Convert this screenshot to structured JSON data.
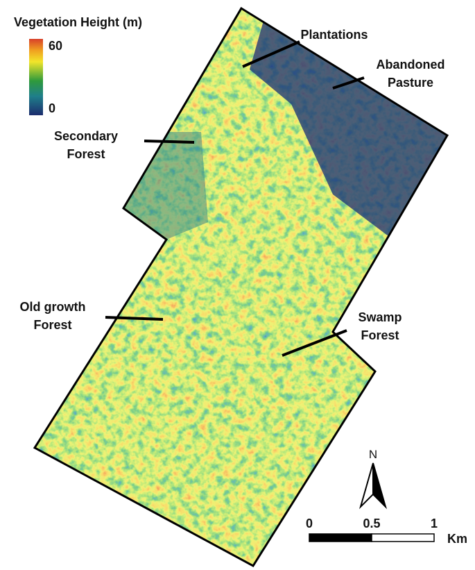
{
  "legend": {
    "title": "Vegetation Height (m)",
    "max": 60,
    "min": 0
  },
  "labels": {
    "plantations": [
      "Plantations"
    ],
    "abandoned_pasture": [
      "Abandoned",
      "Pasture"
    ],
    "secondary_forest": [
      "Secondary",
      "Forest"
    ],
    "old_growth_forest": [
      "Old growth",
      "Forest"
    ],
    "swamp_forest": [
      "Swamp",
      "Forest"
    ]
  },
  "north": "N",
  "scale_bar": {
    "ticks": [
      0,
      0.5,
      1
    ],
    "unit": "Km"
  }
}
